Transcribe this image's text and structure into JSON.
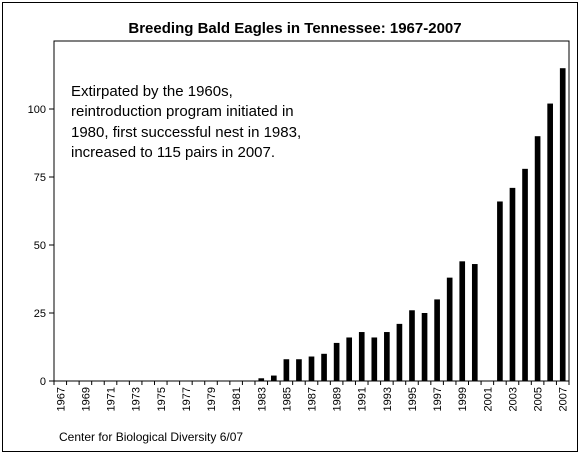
{
  "chart_data": {
    "type": "bar",
    "title": "Breeding Bald Eagles in Tennessee: 1967-2007",
    "xlabel": "",
    "ylabel": "",
    "ylim": [
      0,
      125
    ],
    "yticks": [
      0,
      25,
      50,
      75,
      100
    ],
    "grid": false,
    "legend": "none",
    "bar_color": "#000000",
    "categories": [
      "1967",
      "1968",
      "1969",
      "1970",
      "1971",
      "1972",
      "1973",
      "1974",
      "1975",
      "1976",
      "1977",
      "1978",
      "1979",
      "1980",
      "1981",
      "1982",
      "1983",
      "1984",
      "1985",
      "1986",
      "1987",
      "1988",
      "1989",
      "1990",
      "1991",
      "1992",
      "1993",
      "1994",
      "1995",
      "1996",
      "1997",
      "1998",
      "1999",
      "2000",
      "2001",
      "2002",
      "2003",
      "2004",
      "2005",
      "2006",
      "2007"
    ],
    "tick_labels": [
      "1967",
      "1969",
      "1971",
      "1973",
      "1975",
      "1977",
      "1979",
      "1981",
      "1983",
      "1985",
      "1987",
      "1989",
      "1991",
      "1993",
      "1995",
      "1997",
      "1999",
      "2001",
      "2003",
      "2005",
      "2007"
    ],
    "values": [
      0,
      0,
      0,
      0,
      0,
      0,
      0,
      0,
      0,
      0,
      0,
      0,
      0,
      0,
      0,
      0,
      1,
      2,
      8,
      8,
      9,
      10,
      14,
      16,
      18,
      16,
      18,
      21,
      26,
      25,
      30,
      38,
      44,
      43,
      0,
      66,
      71,
      78,
      90,
      102,
      115
    ],
    "annotation": [
      "Extirpated by the 1960s,",
      "reintroduction program initiated in",
      "1980, first successful nest in 1983,",
      "increased to 115 pairs in 2007."
    ],
    "credit": "Center for Biological Diversity 6/07"
  }
}
